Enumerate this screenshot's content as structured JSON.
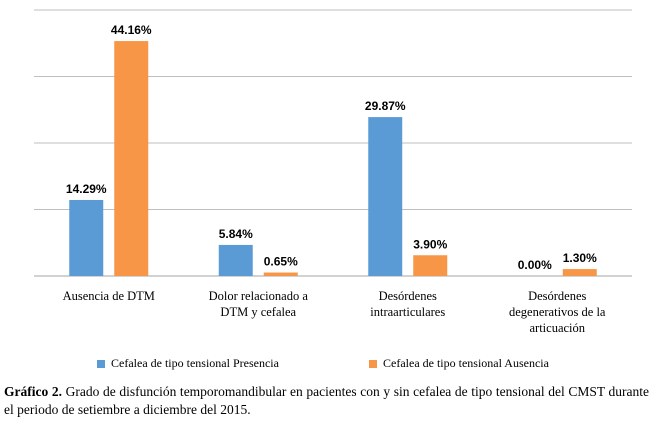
{
  "chart_data": {
    "type": "bar",
    "categories": [
      [
        "Ausencia de DTM"
      ],
      [
        "Dolor relacionado a",
        "DTM y cefalea"
      ],
      [
        "Desórdenes",
        "intraarticulares"
      ],
      [
        "Desórdenes",
        "degenerativos de la",
        "articuación"
      ]
    ],
    "series": [
      {
        "name": "Cefalea de tipo tensional Presencia",
        "color": "#5B9BD5",
        "values": [
          14.29,
          5.84,
          29.87,
          0.0
        ],
        "labels": [
          "14.29%",
          "5.84%",
          "29.87%",
          "0.00%"
        ]
      },
      {
        "name": "Cefalea de tipo tensional Ausencia",
        "color": "#F79646",
        "values": [
          44.16,
          0.65,
          3.9,
          1.3
        ],
        "labels": [
          "44.16%",
          "0.65%",
          "3.90%",
          "1.30%"
        ]
      }
    ],
    "ylim": [
      0,
      50
    ],
    "gridlines": [
      0,
      12.5,
      25,
      37.5,
      50
    ],
    "grid": true,
    "legend_position": "bottom"
  },
  "caption": {
    "label": "Gráfico 2.",
    "text": " Grado de disfunción temporomandibular en pacientes con y sin cefalea de tipo tensional del CMST durante el periodo de setiembre a diciembre del 2015."
  }
}
